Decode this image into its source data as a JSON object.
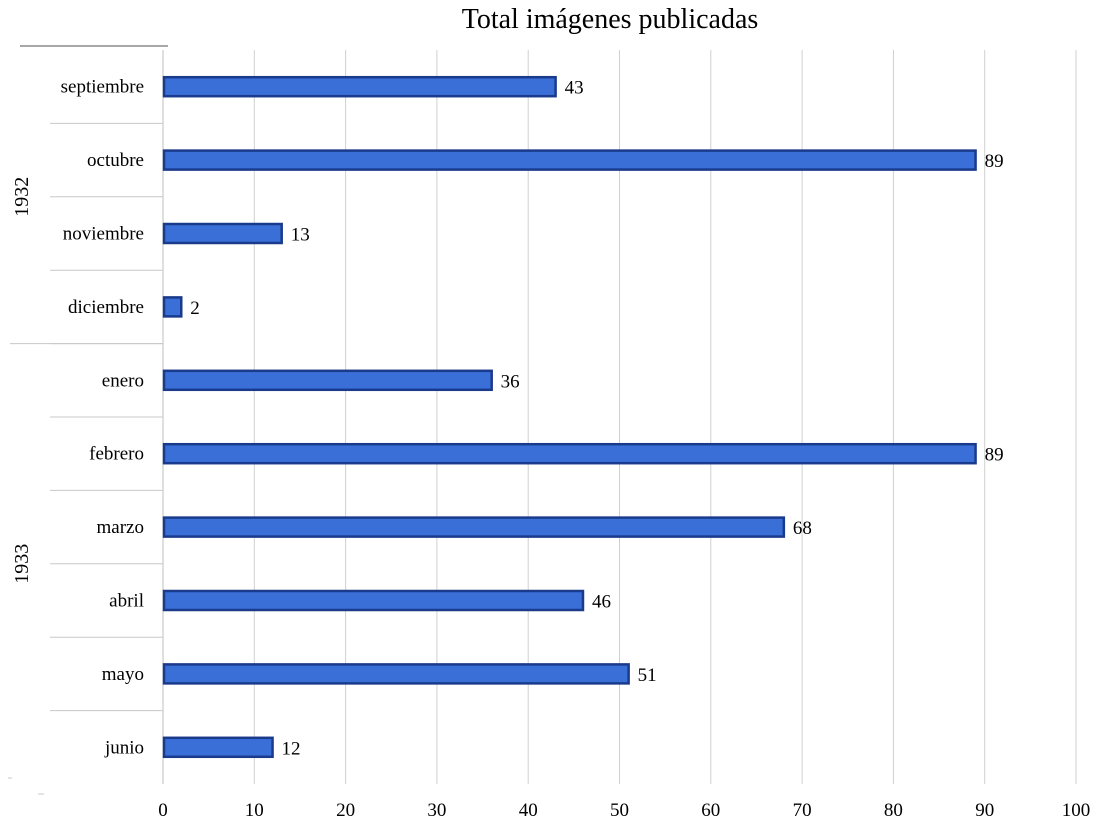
{
  "chart_data": {
    "type": "bar",
    "orientation": "horizontal",
    "title": "Total imágenes publicadas",
    "xlabel": "",
    "ylabel": "",
    "xlim": [
      0,
      100
    ],
    "xticks": [
      0,
      10,
      20,
      30,
      40,
      50,
      60,
      70,
      80,
      90,
      100
    ],
    "grid": true,
    "legend": "none",
    "bar_color": "#3a6fd8",
    "bar_border_color": "#1a3a8c",
    "groups": [
      {
        "label": "1932",
        "categories": [
          "septiembre",
          "octubre",
          "noviembre",
          "diciembre"
        ]
      },
      {
        "label": "1933",
        "categories": [
          "enero",
          "febrero",
          "marzo",
          "abril",
          "mayo",
          "junio"
        ]
      }
    ],
    "categories": [
      "septiembre",
      "octubre",
      "noviembre",
      "diciembre",
      "enero",
      "febrero",
      "marzo",
      "abril",
      "mayo",
      "junio"
    ],
    "values": [
      43,
      89,
      13,
      2,
      36,
      89,
      68,
      46,
      51,
      12
    ],
    "data_labels": [
      "43",
      "89",
      "13",
      "2",
      "36",
      "89",
      "68",
      "46",
      "51",
      "12"
    ]
  }
}
